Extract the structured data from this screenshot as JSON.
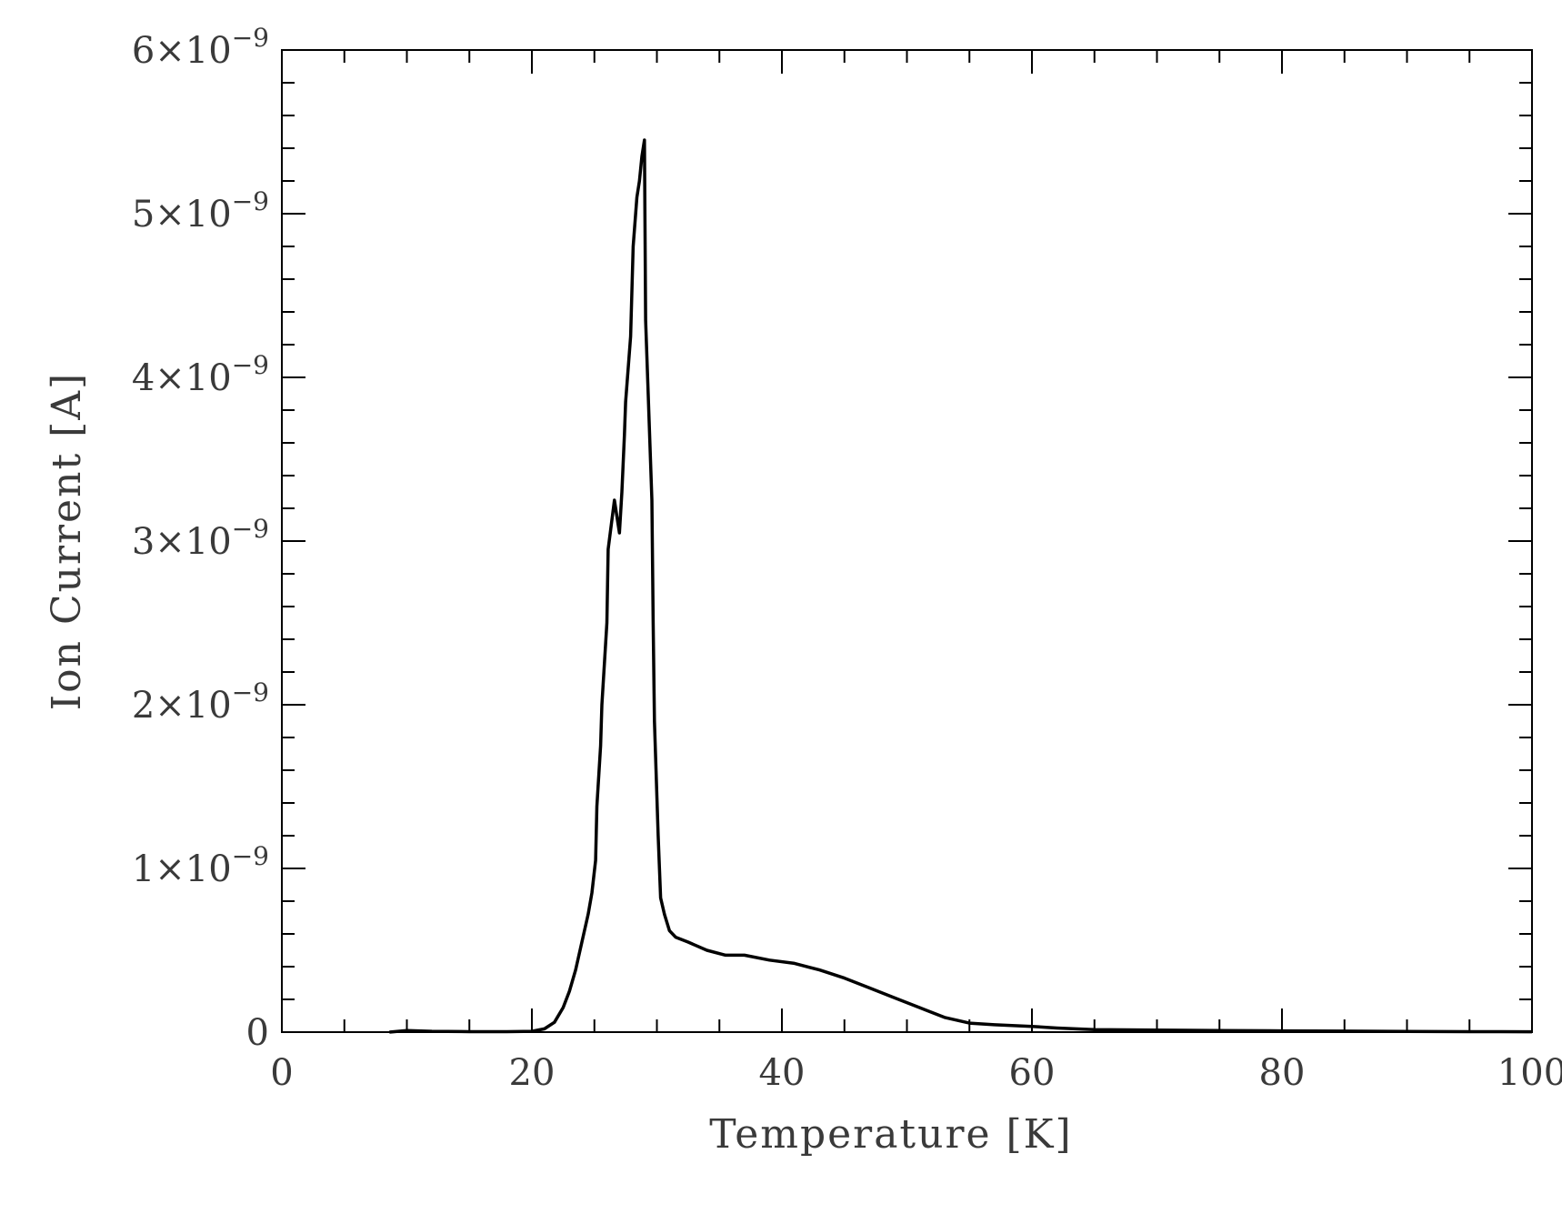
{
  "chart_data": {
    "type": "line",
    "title": "",
    "xlabel": "Temperature [K]",
    "ylabel": "Ion Current [A]",
    "xlim": [
      0,
      100
    ],
    "ylim": [
      0,
      6e-09
    ],
    "x_ticks": [
      {
        "value": 0,
        "label": "0"
      },
      {
        "value": 20,
        "label": "20"
      },
      {
        "value": 40,
        "label": "40"
      },
      {
        "value": 60,
        "label": "60"
      },
      {
        "value": 80,
        "label": "80"
      },
      {
        "value": 100,
        "label": "100"
      }
    ],
    "y_ticks": [
      {
        "value": 0,
        "mantissa": "0",
        "exponent": ""
      },
      {
        "value": 1e-09,
        "mantissa": "1×10",
        "exponent": "−9"
      },
      {
        "value": 2e-09,
        "mantissa": "2×10",
        "exponent": "−9"
      },
      {
        "value": 3e-09,
        "mantissa": "3×10",
        "exponent": "−9"
      },
      {
        "value": 4e-09,
        "mantissa": "4×10",
        "exponent": "−9"
      },
      {
        "value": 5e-09,
        "mantissa": "5×10",
        "exponent": "−9"
      },
      {
        "value": 6e-09,
        "mantissa": "6×10",
        "exponent": "−9"
      }
    ],
    "grid": false,
    "line_color": "#000000",
    "series": [
      {
        "name": "",
        "points": [
          [
            8.6,
            0.0
          ],
          [
            10,
            1e-11
          ],
          [
            12,
            5e-12
          ],
          [
            15,
            3e-12
          ],
          [
            18,
            3e-12
          ],
          [
            20,
            5e-12
          ],
          [
            21,
            2e-11
          ],
          [
            21.8,
            6e-11
          ],
          [
            22.5,
            1.5e-10
          ],
          [
            23.0,
            2.5e-10
          ],
          [
            23.5,
            3.8e-10
          ],
          [
            24.0,
            5.5e-10
          ],
          [
            24.5,
            7.2e-10
          ],
          [
            24.8,
            8.5e-10
          ],
          [
            25.1,
            1.05e-09
          ],
          [
            25.2,
            1.38e-09
          ],
          [
            25.5,
            1.75e-09
          ],
          [
            25.6,
            2e-09
          ],
          [
            26.0,
            2.5e-09
          ],
          [
            26.1,
            2.95e-09
          ],
          [
            26.6,
            3.25e-09
          ],
          [
            26.9,
            3.1e-09
          ],
          [
            27.0,
            3.05e-09
          ],
          [
            27.2,
            3.3e-09
          ],
          [
            27.4,
            3.65e-09
          ],
          [
            27.5,
            3.85e-09
          ],
          [
            27.9,
            4.25e-09
          ],
          [
            28.1,
            4.8e-09
          ],
          [
            28.4,
            5.1e-09
          ],
          [
            28.6,
            5.2e-09
          ],
          [
            28.8,
            5.35e-09
          ],
          [
            29.0,
            5.45e-09
          ],
          [
            29.1,
            4.35e-09
          ],
          [
            29.6,
            3.25e-09
          ],
          [
            29.7,
            2.5e-09
          ],
          [
            29.8,
            1.9e-09
          ],
          [
            30.1,
            1.2e-09
          ],
          [
            30.3,
            8.2e-10
          ],
          [
            30.6,
            7.2e-10
          ],
          [
            31.0,
            6.2e-10
          ],
          [
            31.5,
            5.8e-10
          ],
          [
            32.5,
            5.5e-10
          ],
          [
            34.0,
            5e-10
          ],
          [
            35.5,
            4.7e-10
          ],
          [
            37.0,
            4.7e-10
          ],
          [
            39.0,
            4.4e-10
          ],
          [
            41.0,
            4.2e-10
          ],
          [
            43.0,
            3.8e-10
          ],
          [
            45.0,
            3.3e-10
          ],
          [
            47.0,
            2.7e-10
          ],
          [
            49.0,
            2.1e-10
          ],
          [
            51.0,
            1.5e-10
          ],
          [
            53.0,
            9e-11
          ],
          [
            55.0,
            5.5e-11
          ],
          [
            57.0,
            4.5e-11
          ],
          [
            60.0,
            3.5e-11
          ],
          [
            62.0,
            2.5e-11
          ],
          [
            65.0,
            1.5e-11
          ],
          [
            70.0,
            1.2e-11
          ],
          [
            75.0,
            1e-11
          ],
          [
            80.0,
            8e-12
          ],
          [
            85.0,
            6e-12
          ],
          [
            90.0,
            4e-12
          ],
          [
            95.0,
            3e-12
          ],
          [
            100.0,
            2e-12
          ]
        ]
      }
    ]
  }
}
